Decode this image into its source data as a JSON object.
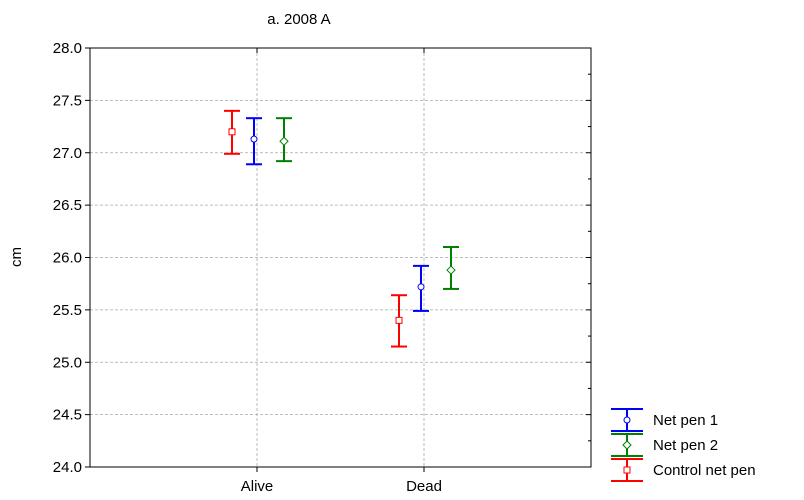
{
  "chart_data": {
    "type": "scatter",
    "title": "a. 2008 A",
    "xlabel": "",
    "ylabel": "cm",
    "categories": [
      "Alive",
      "Dead"
    ],
    "ylim": [
      24.0,
      28.0
    ],
    "yticks": [
      "24.0",
      "24.5",
      "25.0",
      "25.5",
      "26.0",
      "26.5",
      "27.0",
      "27.5",
      "28.0"
    ],
    "grid": true,
    "legend_position": "bottom-right outside",
    "series": [
      {
        "name": "Net pen 1",
        "color": "#0000ff",
        "marker": "circle",
        "means": [
          27.13,
          25.72
        ],
        "lower": [
          26.89,
          25.49
        ],
        "upper": [
          27.33,
          25.92
        ]
      },
      {
        "name": "Net pen 2",
        "color": "#008000",
        "marker": "diamond",
        "means": [
          27.11,
          25.88
        ],
        "lower": [
          26.92,
          25.7
        ],
        "upper": [
          27.33,
          26.1
        ]
      },
      {
        "name": "Control net pen",
        "color": "#ff0000",
        "marker": "square",
        "means": [
          27.2,
          25.4
        ],
        "lower": [
          26.99,
          25.15
        ],
        "upper": [
          27.4,
          25.64
        ]
      }
    ]
  }
}
